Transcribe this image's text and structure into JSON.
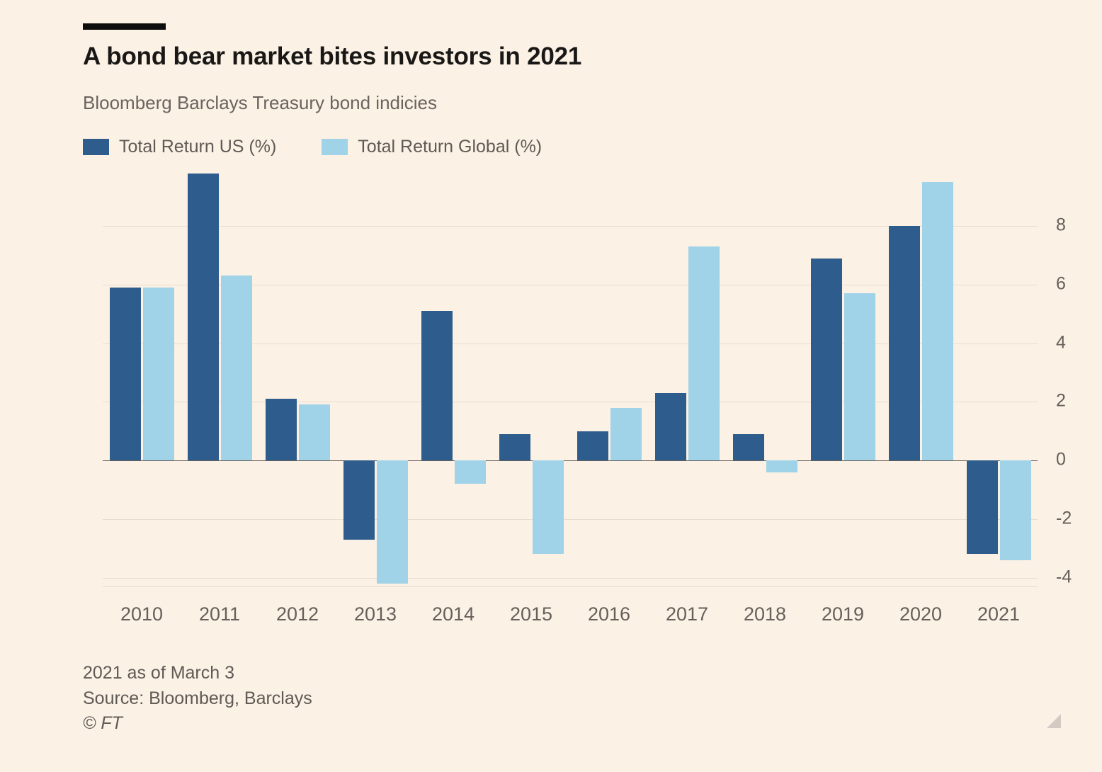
{
  "header": {
    "title": "A bond bear market bites investors in 2021",
    "subtitle": "Bloomberg Barclays Treasury bond indicies"
  },
  "legend": [
    {
      "label": "Total Return US (%)",
      "color": "#2e5c8c"
    },
    {
      "label": "Total Return Global (%)",
      "color": "#a0d2e8"
    }
  ],
  "footer": {
    "note": "2021 as of March 3",
    "source": "Source: Bloomberg, Barclays",
    "credit": "© FT"
  },
  "chart_data": {
    "type": "bar",
    "title": "A bond bear market bites investors in 2021",
    "subtitle": "Bloomberg Barclays Treasury bond indicies",
    "categories": [
      "2010",
      "2011",
      "2012",
      "2013",
      "2014",
      "2015",
      "2016",
      "2017",
      "2018",
      "2019",
      "2020",
      "2021"
    ],
    "series": [
      {
        "name": "Total Return US (%)",
        "color": "#2e5c8c",
        "values": [
          5.9,
          9.8,
          2.1,
          -2.7,
          5.1,
          0.9,
          1.0,
          2.3,
          0.9,
          6.9,
          8.0,
          -3.2
        ]
      },
      {
        "name": "Total Return Global (%)",
        "color": "#a0d2e8",
        "values": [
          5.9,
          6.3,
          1.9,
          -4.2,
          -0.8,
          -3.2,
          1.8,
          7.3,
          -0.4,
          5.7,
          9.5,
          -3.4
        ]
      }
    ],
    "xlabel": "",
    "ylabel": "",
    "yticks": [
      -4,
      -2,
      0,
      2,
      4,
      6,
      8
    ],
    "ylim": [
      -4.3,
      10.2
    ],
    "grid": true,
    "legend_position": "top-left",
    "y_axis_side": "right"
  }
}
